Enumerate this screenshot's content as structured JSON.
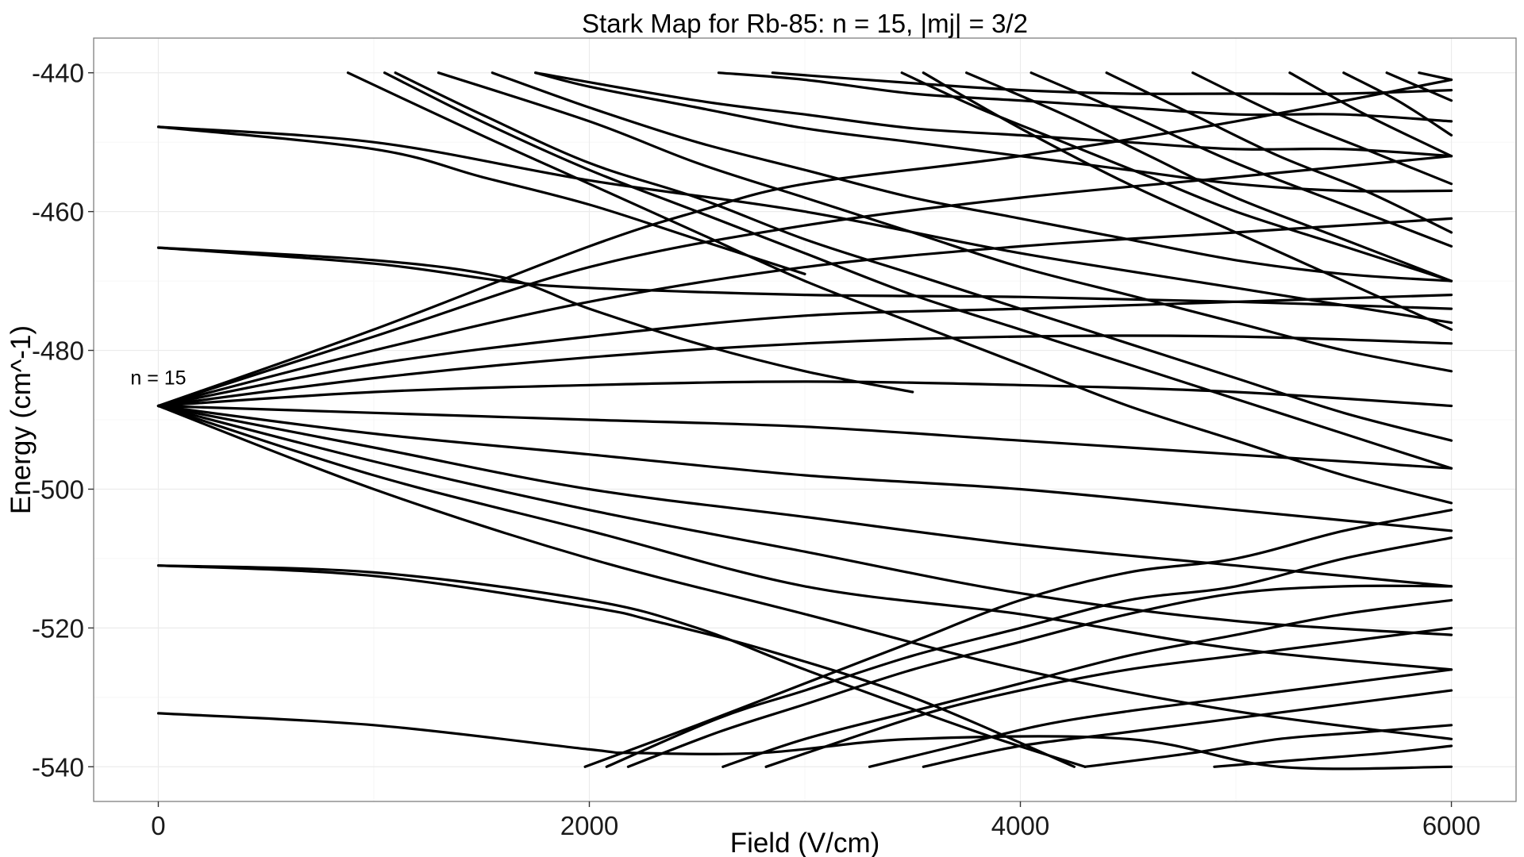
{
  "chart_data": {
    "type": "line",
    "title": "Stark Map for Rb-85: n = 15, |mj| = 3/2",
    "xlabel": "Field (V/cm)",
    "ylabel": "Energy (cm^-1)",
    "xlim": [
      -300,
      6300
    ],
    "ylim": [
      -545,
      -435
    ],
    "x_ticks": [
      {
        "value": 0,
        "label": "0"
      },
      {
        "value": 2000,
        "label": "2000"
      },
      {
        "value": 4000,
        "label": "4000"
      },
      {
        "value": 6000,
        "label": "6000"
      }
    ],
    "y_ticks": [
      {
        "value": -440,
        "label": "-440"
      },
      {
        "value": -460,
        "label": "-460"
      },
      {
        "value": -480,
        "label": "-480"
      },
      {
        "value": -500,
        "label": "-500"
      },
      {
        "value": -520,
        "label": "-520"
      },
      {
        "value": -540,
        "label": "-540"
      }
    ],
    "grid": true,
    "legend": "none",
    "line_color": "#000000",
    "annotations": [
      {
        "text": "n = 15",
        "x": 0,
        "y": -484
      }
    ],
    "series": [
      {
        "x": [
          0,
          1000,
          2000,
          3000,
          4000,
          5000,
          6000
        ],
        "y": [
          -447.8,
          -450,
          -455.5,
          -460,
          -466,
          -471,
          -476
        ]
      },
      {
        "x": [
          0,
          1000,
          1500,
          2000,
          2500,
          3000
        ],
        "y": [
          -447.8,
          -451,
          -455,
          -459,
          -464,
          -469
        ]
      },
      {
        "x": [
          0,
          1000,
          1600,
          2000,
          2500,
          3000,
          3500
        ],
        "y": [
          -465.2,
          -467,
          -469.5,
          -474,
          -479,
          -483,
          -486
        ]
      },
      {
        "x": [
          0,
          1000,
          1600,
          2000,
          3000,
          4000,
          5000,
          6000
        ],
        "y": [
          -465.2,
          -467.5,
          -470,
          -471,
          -472,
          -472.3,
          -473,
          -474
        ]
      },
      {
        "x": [
          0,
          1000,
          2000,
          2500,
          3000,
          3800,
          4300
        ],
        "y": [
          -511,
          -512,
          -516,
          -520,
          -526,
          -535,
          -540
        ]
      },
      {
        "x": [
          0,
          1000,
          2000,
          2300,
          2800,
          3500,
          4250
        ],
        "y": [
          -511,
          -512.5,
          -517,
          -519,
          -523,
          -530,
          -540
        ]
      },
      {
        "x": [
          0,
          1000,
          2000,
          2200,
          2800,
          3500,
          4500,
          5200,
          6000
        ],
        "y": [
          -532.3,
          -534,
          -537.5,
          -538,
          -538,
          -536,
          -536,
          -540,
          -540
        ]
      },
      {
        "x": [
          0,
          1000,
          2000,
          2500,
          3000,
          4000,
          5000,
          6000
        ],
        "y": [
          -488,
          -477,
          -465,
          -460,
          -456,
          -452,
          -447,
          -441
        ]
      },
      {
        "x": [
          0,
          1000,
          2000,
          3000,
          4000,
          5000,
          6000
        ],
        "y": [
          -488,
          -478,
          -468,
          -462,
          -458,
          -455,
          -452
        ]
      },
      {
        "x": [
          0,
          1000,
          2000,
          3000,
          4000,
          5000,
          6000
        ],
        "y": [
          -488,
          -480,
          -473,
          -468,
          -465,
          -463,
          -461
        ]
      },
      {
        "x": [
          0,
          1000,
          2000,
          3000,
          4000,
          5000,
          6000
        ],
        "y": [
          -488,
          -482,
          -478,
          -475,
          -474,
          -473,
          -472
        ]
      },
      {
        "x": [
          0,
          1000,
          2000,
          3000,
          4000,
          5000,
          6000
        ],
        "y": [
          -488,
          -484,
          -481,
          -479,
          -478,
          -478,
          -479
        ]
      },
      {
        "x": [
          0,
          1000,
          2000,
          3000,
          4000,
          5000,
          6000
        ],
        "y": [
          -488,
          -486,
          -485,
          -484.5,
          -485,
          -486,
          -488
        ]
      },
      {
        "x": [
          0,
          1000,
          2000,
          3000,
          4000,
          5000,
          6000
        ],
        "y": [
          -488,
          -489,
          -490,
          -491,
          -493,
          -495,
          -497
        ]
      },
      {
        "x": [
          0,
          1000,
          2000,
          3000,
          4000,
          5000,
          6000
        ],
        "y": [
          -488,
          -492,
          -495,
          -498,
          -500,
          -503,
          -506
        ]
      },
      {
        "x": [
          0,
          1000,
          2000,
          3000,
          4000,
          5000,
          6000
        ],
        "y": [
          -488,
          -494,
          -500,
          -504,
          -508,
          -511,
          -514
        ]
      },
      {
        "x": [
          0,
          1000,
          2000,
          3000,
          4000,
          5000,
          6000
        ],
        "y": [
          -488,
          -496,
          -503,
          -509,
          -515,
          -519,
          -521
        ]
      },
      {
        "x": [
          0,
          1000,
          2000,
          3000,
          4000,
          5000,
          6000
        ],
        "y": [
          -488,
          -498,
          -506,
          -514,
          -518,
          -523,
          -526
        ]
      },
      {
        "x": [
          0,
          1000,
          2000,
          3000,
          4000,
          5000,
          6000
        ],
        "y": [
          -488,
          -500,
          -510,
          -518,
          -526,
          -532,
          -536
        ]
      },
      {
        "x": [
          880,
          1500,
          2000,
          2500,
          3000,
          3500,
          4000,
          4500,
          5000,
          5500,
          6000
        ],
        "y": [
          -440,
          -449,
          -456,
          -463,
          -470,
          -476,
          -482,
          -488,
          -493,
          -498,
          -502
        ]
      },
      {
        "x": [
          1050,
          1500,
          2000,
          2500,
          3000,
          3500,
          4000,
          4500,
          5000,
          5500,
          6000
        ],
        "y": [
          -440,
          -447,
          -454,
          -460,
          -466,
          -472,
          -477,
          -482,
          -487,
          -492,
          -497
        ]
      },
      {
        "x": [
          1100,
          1500,
          2000,
          2500,
          3000,
          3500,
          4000,
          4500,
          5000,
          5500,
          6000
        ],
        "y": [
          -440,
          -446,
          -453,
          -458,
          -464,
          -469,
          -474,
          -479,
          -484,
          -489,
          -493
        ]
      },
      {
        "x": [
          1300,
          2000,
          2500,
          3000,
          3500,
          4000,
          4500,
          5000,
          5500,
          6000
        ],
        "y": [
          -440,
          -447,
          -453,
          -458,
          -463,
          -468,
          -472,
          -476,
          -480,
          -483
        ]
      },
      {
        "x": [
          1550,
          2000,
          2500,
          3000,
          3500,
          4000,
          4500,
          5000,
          5500,
          6000
        ],
        "y": [
          -440,
          -445,
          -450,
          -454,
          -458,
          -461,
          -464,
          -467,
          -469,
          -470
        ]
      },
      {
        "x": [
          1750,
          2000,
          2500,
          3000,
          3500,
          4000,
          4500,
          5000,
          5500,
          6000
        ],
        "y": [
          -440,
          -442,
          -445,
          -448,
          -450,
          -452,
          -454,
          -456,
          -457,
          -457
        ]
      },
      {
        "x": [
          1750,
          2500,
          3000,
          3500,
          4000,
          4500,
          5000,
          5500,
          6000
        ],
        "y": [
          -440,
          -444,
          -446,
          -448,
          -449,
          -450,
          -451,
          -451,
          -452
        ]
      },
      {
        "x": [
          2600,
          3000,
          3500,
          4000,
          4500,
          5000,
          5500,
          6000
        ],
        "y": [
          -440,
          -441,
          -443,
          -444,
          -445,
          -446,
          -446,
          -447
        ]
      },
      {
        "x": [
          2850,
          3500,
          4000,
          4500,
          5000,
          5500,
          6000
        ],
        "y": [
          -440,
          -441.5,
          -442.5,
          -443,
          -443,
          -443,
          -442.5
        ]
      },
      {
        "x": [
          3450,
          3800,
          4200,
          4600,
          5000,
          5500,
          6000
        ],
        "y": [
          -440,
          -445,
          -450,
          -455,
          -460,
          -465,
          -470
        ]
      },
      {
        "x": [
          3550,
          4000,
          4500,
          5000,
          5500,
          6000
        ],
        "y": [
          -440,
          -448,
          -456,
          -463,
          -470,
          -477
        ]
      },
      {
        "x": [
          3750,
          4200,
          4600,
          5000,
          5500,
          6000
        ],
        "y": [
          -440,
          -446,
          -452,
          -458,
          -464,
          -470
        ]
      },
      {
        "x": [
          4050,
          4500,
          5000,
          5500,
          6000
        ],
        "y": [
          -440,
          -446,
          -453,
          -459,
          -465
        ]
      },
      {
        "x": [
          4400,
          4800,
          5200,
          5600,
          6000
        ],
        "y": [
          -440,
          -446,
          -452,
          -457,
          -463
        ]
      },
      {
        "x": [
          4800,
          5200,
          5600,
          6000
        ],
        "y": [
          -440,
          -446,
          -451,
          -456
        ]
      },
      {
        "x": [
          5250,
          5600,
          6000
        ],
        "y": [
          -440,
          -446,
          -452
        ]
      },
      {
        "x": [
          5500,
          5750,
          6000
        ],
        "y": [
          -440,
          -444,
          -449
        ]
      },
      {
        "x": [
          5700,
          5850,
          6000
        ],
        "y": [
          -440,
          -442,
          -444
        ]
      },
      {
        "x": [
          5850,
          6000
        ],
        "y": [
          -440,
          -441
        ]
      },
      {
        "x": [
          1980,
          2500,
          3000,
          3500,
          4000,
          4500,
          5000,
          5500,
          6000
        ],
        "y": [
          -540,
          -534,
          -528,
          -522,
          -516,
          -512,
          -510,
          -506,
          -503
        ]
      },
      {
        "x": [
          2080,
          2600,
          3000,
          3500,
          4000,
          4500,
          5000,
          5500,
          6000
        ],
        "y": [
          -540,
          -533,
          -529,
          -524,
          -520,
          -516,
          -514,
          -510,
          -507
        ]
      },
      {
        "x": [
          2180,
          2600,
          3000,
          3500,
          4000,
          4500,
          5000,
          5500,
          6000
        ],
        "y": [
          -540,
          -535,
          -531,
          -526,
          -522,
          -518,
          -515,
          -514,
          -514
        ]
      },
      {
        "x": [
          2620,
          3000,
          3500,
          4000,
          4500,
          5000,
          5500,
          6000
        ],
        "y": [
          -540,
          -536,
          -532,
          -528,
          -524,
          -521,
          -518,
          -516
        ]
      },
      {
        "x": [
          2820,
          3200,
          3600,
          4000,
          4500,
          5000,
          5500,
          6000
        ],
        "y": [
          -540,
          -536,
          -532,
          -529,
          -526,
          -524,
          -522,
          -520
        ]
      },
      {
        "x": [
          3300,
          3700,
          4100,
          4500,
          5000,
          5500,
          6000
        ],
        "y": [
          -540,
          -537,
          -534,
          -532,
          -530,
          -528,
          -526
        ]
      },
      {
        "x": [
          3550,
          4000,
          4500,
          5000,
          5500,
          6000
        ],
        "y": [
          -540,
          -537,
          -535,
          -533,
          -531,
          -529
        ]
      },
      {
        "x": [
          4300,
          4800,
          5200,
          5600,
          6000
        ],
        "y": [
          -540,
          -538,
          -536,
          -535,
          -534
        ]
      },
      {
        "x": [
          4900,
          5300,
          5700,
          6000
        ],
        "y": [
          -540,
          -539,
          -538,
          -537
        ]
      }
    ]
  }
}
